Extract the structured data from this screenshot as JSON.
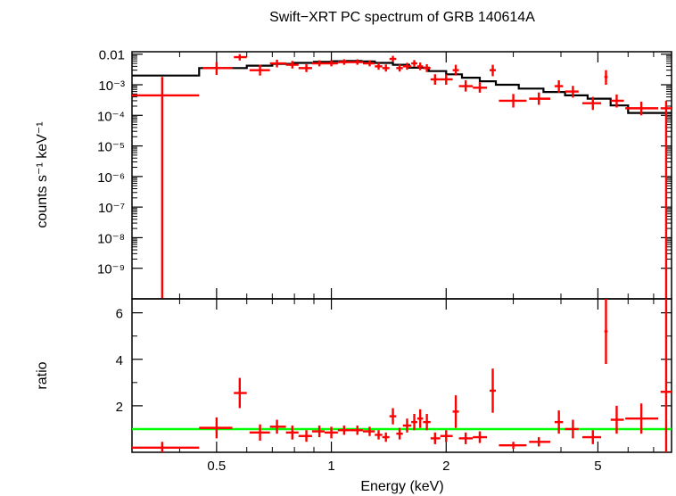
{
  "chart_data": [
    {
      "type": "scatter",
      "title": "Swift−XRT PC spectrum of GRB 140614A",
      "ylabel": "counts s⁻¹ keV⁻¹",
      "x_scale": "log",
      "y_scale": "log",
      "xlim": [
        0.3,
        7.8
      ],
      "ylim": [
        1e-10,
        0.012
      ],
      "y_ticks": [
        {
          "v": 0.01,
          "label": "0.01"
        },
        {
          "v": 0.001,
          "label": "10⁻³"
        },
        {
          "v": 0.0001,
          "label": "10⁻⁴"
        },
        {
          "v": 1e-05,
          "label": "10⁻⁵"
        },
        {
          "v": 1e-06,
          "label": "10⁻⁶"
        },
        {
          "v": 1e-07,
          "label": "10⁻⁷"
        },
        {
          "v": 1e-08,
          "label": "10⁻⁸"
        },
        {
          "v": 1e-09,
          "label": "10⁻⁹"
        }
      ],
      "colors": {
        "data": "#ff0000",
        "model": "#000000"
      },
      "data_points": [
        {
          "x": 0.36,
          "xlo": 0.3,
          "xhi": 0.45,
          "y": 0.00045,
          "ylo": 1e-10,
          "yhi": 0.0018
        },
        {
          "x": 0.5,
          "xlo": 0.46,
          "xhi": 0.55,
          "y": 0.0035,
          "ylo": 0.0021,
          "yhi": 0.0055
        },
        {
          "x": 0.575,
          "xlo": 0.555,
          "xhi": 0.6,
          "y": 0.008,
          "ylo": 0.0062,
          "yhi": 0.01
        },
        {
          "x": 0.65,
          "xlo": 0.61,
          "xhi": 0.69,
          "y": 0.003,
          "ylo": 0.002,
          "yhi": 0.0045
        },
        {
          "x": 0.72,
          "xlo": 0.69,
          "xhi": 0.76,
          "y": 0.005,
          "ylo": 0.0037,
          "yhi": 0.0066
        },
        {
          "x": 0.79,
          "xlo": 0.76,
          "xhi": 0.82,
          "y": 0.0045,
          "ylo": 0.0034,
          "yhi": 0.006
        },
        {
          "x": 0.86,
          "xlo": 0.82,
          "xhi": 0.89,
          "y": 0.0035,
          "ylo": 0.0026,
          "yhi": 0.0047
        },
        {
          "x": 0.93,
          "xlo": 0.89,
          "xhi": 0.96,
          "y": 0.005,
          "ylo": 0.004,
          "yhi": 0.0063
        },
        {
          "x": 1.0,
          "xlo": 0.96,
          "xhi": 1.04,
          "y": 0.005,
          "ylo": 0.004,
          "yhi": 0.0063
        },
        {
          "x": 1.08,
          "xlo": 1.04,
          "xhi": 1.12,
          "y": 0.0055,
          "ylo": 0.0045,
          "yhi": 0.0068
        },
        {
          "x": 1.17,
          "xlo": 1.12,
          "xhi": 1.21,
          "y": 0.0055,
          "ylo": 0.0045,
          "yhi": 0.0068
        },
        {
          "x": 1.26,
          "xlo": 1.21,
          "xhi": 1.3,
          "y": 0.005,
          "ylo": 0.004,
          "yhi": 0.0063
        },
        {
          "x": 1.33,
          "xlo": 1.3,
          "xhi": 1.36,
          "y": 0.004,
          "ylo": 0.0031,
          "yhi": 0.0052
        },
        {
          "x": 1.39,
          "xlo": 1.36,
          "xhi": 1.42,
          "y": 0.0035,
          "ylo": 0.0027,
          "yhi": 0.0046
        },
        {
          "x": 1.45,
          "xlo": 1.42,
          "xhi": 1.48,
          "y": 0.007,
          "ylo": 0.0056,
          "yhi": 0.0088
        },
        {
          "x": 1.51,
          "xlo": 1.48,
          "xhi": 1.54,
          "y": 0.0035,
          "ylo": 0.0027,
          "yhi": 0.0046
        },
        {
          "x": 1.58,
          "xlo": 1.54,
          "xhi": 1.62,
          "y": 0.004,
          "ylo": 0.0031,
          "yhi": 0.0052
        },
        {
          "x": 1.65,
          "xlo": 1.62,
          "xhi": 1.68,
          "y": 0.005,
          "ylo": 0.0039,
          "yhi": 0.0064
        },
        {
          "x": 1.71,
          "xlo": 1.68,
          "xhi": 1.74,
          "y": 0.004,
          "ylo": 0.003,
          "yhi": 0.0053
        },
        {
          "x": 1.78,
          "xlo": 1.74,
          "xhi": 1.82,
          "y": 0.0035,
          "ylo": 0.0026,
          "yhi": 0.0047
        },
        {
          "x": 1.87,
          "xlo": 1.82,
          "xhi": 1.93,
          "y": 0.0015,
          "ylo": 0.001,
          "yhi": 0.0022
        },
        {
          "x": 2.0,
          "xlo": 1.93,
          "xhi": 2.08,
          "y": 0.0015,
          "ylo": 0.001,
          "yhi": 0.0022
        },
        {
          "x": 2.12,
          "xlo": 2.08,
          "xhi": 2.16,
          "y": 0.003,
          "ylo": 0.002,
          "yhi": 0.0045
        },
        {
          "x": 2.25,
          "xlo": 2.16,
          "xhi": 2.35,
          "y": 0.0009,
          "ylo": 0.0006,
          "yhi": 0.0014
        },
        {
          "x": 2.45,
          "xlo": 2.35,
          "xhi": 2.56,
          "y": 0.0008,
          "ylo": 0.00055,
          "yhi": 0.0012
        },
        {
          "x": 2.65,
          "xlo": 2.6,
          "xhi": 2.7,
          "y": 0.003,
          "ylo": 0.0019,
          "yhi": 0.0045
        },
        {
          "x": 3.0,
          "xlo": 2.75,
          "xhi": 3.25,
          "y": 0.0003,
          "ylo": 0.00018,
          "yhi": 0.0005
        },
        {
          "x": 3.5,
          "xlo": 3.3,
          "xhi": 3.75,
          "y": 0.00035,
          "ylo": 0.00022,
          "yhi": 0.00056
        },
        {
          "x": 3.95,
          "xlo": 3.85,
          "xhi": 4.05,
          "y": 0.0009,
          "ylo": 0.00055,
          "yhi": 0.0014
        },
        {
          "x": 4.3,
          "xlo": 4.1,
          "xhi": 4.45,
          "y": 0.0006,
          "ylo": 0.00038,
          "yhi": 0.00092
        },
        {
          "x": 4.85,
          "xlo": 4.55,
          "xhi": 5.1,
          "y": 0.00025,
          "ylo": 0.00015,
          "yhi": 0.0004
        },
        {
          "x": 5.25,
          "xlo": 5.2,
          "xhi": 5.3,
          "y": 0.0018,
          "ylo": 0.001,
          "yhi": 0.003
        },
        {
          "x": 5.6,
          "xlo": 5.4,
          "xhi": 5.85,
          "y": 0.0003,
          "ylo": 0.00018,
          "yhi": 0.00048
        },
        {
          "x": 6.5,
          "xlo": 5.9,
          "xhi": 7.2,
          "y": 0.00017,
          "ylo": 0.0001,
          "yhi": 0.00028
        },
        {
          "x": 7.55,
          "xlo": 7.3,
          "xhi": 7.8,
          "y": 0.00017,
          "ylo": 1e-10,
          "yhi": 0.0003
        }
      ],
      "model_steps": [
        {
          "xlo": 0.3,
          "xhi": 0.45,
          "y": 0.002
        },
        {
          "xlo": 0.45,
          "xhi": 0.6,
          "y": 0.0035
        },
        {
          "xlo": 0.6,
          "xhi": 0.7,
          "y": 0.0042
        },
        {
          "xlo": 0.7,
          "xhi": 0.8,
          "y": 0.0048
        },
        {
          "xlo": 0.8,
          "xhi": 0.9,
          "y": 0.0052
        },
        {
          "xlo": 0.9,
          "xhi": 1.0,
          "y": 0.0056
        },
        {
          "xlo": 1.0,
          "xhi": 1.1,
          "y": 0.0059
        },
        {
          "xlo": 1.1,
          "xhi": 1.2,
          "y": 0.006
        },
        {
          "xlo": 1.2,
          "xhi": 1.3,
          "y": 0.0058
        },
        {
          "xlo": 1.3,
          "xhi": 1.45,
          "y": 0.0052
        },
        {
          "xlo": 1.45,
          "xhi": 1.6,
          "y": 0.0045
        },
        {
          "xlo": 1.6,
          "xhi": 1.8,
          "y": 0.0036
        },
        {
          "xlo": 1.8,
          "xhi": 2.0,
          "y": 0.0028
        },
        {
          "xlo": 2.0,
          "xhi": 2.2,
          "y": 0.0022
        },
        {
          "xlo": 2.2,
          "xhi": 2.45,
          "y": 0.0017
        },
        {
          "xlo": 2.45,
          "xhi": 2.7,
          "y": 0.0013
        },
        {
          "xlo": 2.7,
          "xhi": 3.1,
          "y": 0.001
        },
        {
          "xlo": 3.1,
          "xhi": 3.6,
          "y": 0.00075
        },
        {
          "xlo": 3.6,
          "xhi": 4.1,
          "y": 0.00058
        },
        {
          "xlo": 4.1,
          "xhi": 4.7,
          "y": 0.00045
        },
        {
          "xlo": 4.7,
          "xhi": 5.4,
          "y": 0.00035
        },
        {
          "xlo": 5.4,
          "xhi": 6.0,
          "y": 0.00021
        },
        {
          "xlo": 6.0,
          "xhi": 7.8,
          "y": 0.00012
        }
      ]
    },
    {
      "type": "scatter",
      "xlabel": "Energy (keV)",
      "ylabel": "ratio",
      "x_scale": "log",
      "xlim": [
        0.3,
        7.8
      ],
      "ylim": [
        0,
        6.6
      ],
      "x_ticks": [
        {
          "v": 0.5,
          "label": "0.5"
        },
        {
          "v": 1,
          "label": "1"
        },
        {
          "v": 2,
          "label": "2"
        },
        {
          "v": 5,
          "label": "5"
        }
      ],
      "y_ticks": [
        {
          "v": 2,
          "label": "2"
        },
        {
          "v": 4,
          "label": "4"
        },
        {
          "v": 6,
          "label": "6"
        }
      ],
      "reference_line": {
        "y": 1.0,
        "color": "#00ff00"
      },
      "colors": {
        "data": "#ff0000"
      },
      "data_points": [
        {
          "x": 0.36,
          "xlo": 0.3,
          "xhi": 0.45,
          "y": 0.2,
          "ylo": 0.0,
          "yhi": 0.45
        },
        {
          "x": 0.5,
          "xlo": 0.45,
          "xhi": 0.55,
          "y": 1.05,
          "ylo": 0.6,
          "yhi": 1.5
        },
        {
          "x": 0.575,
          "xlo": 0.555,
          "xhi": 0.6,
          "y": 2.55,
          "ylo": 1.9,
          "yhi": 3.2
        },
        {
          "x": 0.65,
          "xlo": 0.61,
          "xhi": 0.69,
          "y": 0.85,
          "ylo": 0.5,
          "yhi": 1.2
        },
        {
          "x": 0.72,
          "xlo": 0.69,
          "xhi": 0.76,
          "y": 1.1,
          "ylo": 0.8,
          "yhi": 1.4
        },
        {
          "x": 0.79,
          "xlo": 0.76,
          "xhi": 0.82,
          "y": 0.85,
          "ylo": 0.55,
          "yhi": 1.15
        },
        {
          "x": 0.86,
          "xlo": 0.82,
          "xhi": 0.89,
          "y": 0.7,
          "ylo": 0.45,
          "yhi": 0.95
        },
        {
          "x": 0.93,
          "xlo": 0.89,
          "xhi": 0.96,
          "y": 0.9,
          "ylo": 0.65,
          "yhi": 1.15
        },
        {
          "x": 1.0,
          "xlo": 0.96,
          "xhi": 1.04,
          "y": 0.85,
          "ylo": 0.6,
          "yhi": 1.1
        },
        {
          "x": 1.08,
          "xlo": 1.04,
          "xhi": 1.12,
          "y": 0.95,
          "ylo": 0.75,
          "yhi": 1.15
        },
        {
          "x": 1.17,
          "xlo": 1.12,
          "xhi": 1.21,
          "y": 0.95,
          "ylo": 0.75,
          "yhi": 1.15
        },
        {
          "x": 1.26,
          "xlo": 1.21,
          "xhi": 1.3,
          "y": 0.9,
          "ylo": 0.7,
          "yhi": 1.1
        },
        {
          "x": 1.33,
          "xlo": 1.3,
          "xhi": 1.36,
          "y": 0.75,
          "ylo": 0.55,
          "yhi": 0.95
        },
        {
          "x": 1.39,
          "xlo": 1.36,
          "xhi": 1.42,
          "y": 0.65,
          "ylo": 0.45,
          "yhi": 0.85
        },
        {
          "x": 1.45,
          "xlo": 1.42,
          "xhi": 1.48,
          "y": 1.55,
          "ylo": 1.2,
          "yhi": 1.9
        },
        {
          "x": 1.51,
          "xlo": 1.48,
          "xhi": 1.54,
          "y": 0.8,
          "ylo": 0.55,
          "yhi": 1.05
        },
        {
          "x": 1.58,
          "xlo": 1.54,
          "xhi": 1.62,
          "y": 1.15,
          "ylo": 0.85,
          "yhi": 1.45
        },
        {
          "x": 1.65,
          "xlo": 1.62,
          "xhi": 1.68,
          "y": 1.3,
          "ylo": 0.95,
          "yhi": 1.65
        },
        {
          "x": 1.71,
          "xlo": 1.68,
          "xhi": 1.74,
          "y": 1.45,
          "ylo": 1.05,
          "yhi": 1.85
        },
        {
          "x": 1.78,
          "xlo": 1.74,
          "xhi": 1.82,
          "y": 1.3,
          "ylo": 0.95,
          "yhi": 1.65
        },
        {
          "x": 1.87,
          "xlo": 1.82,
          "xhi": 1.93,
          "y": 0.6,
          "ylo": 0.35,
          "yhi": 0.85
        },
        {
          "x": 2.0,
          "xlo": 1.93,
          "xhi": 2.08,
          "y": 0.7,
          "ylo": 0.45,
          "yhi": 0.95
        },
        {
          "x": 2.12,
          "xlo": 2.08,
          "xhi": 2.16,
          "y": 1.75,
          "ylo": 1.05,
          "yhi": 2.45
        },
        {
          "x": 2.25,
          "xlo": 2.16,
          "xhi": 2.35,
          "y": 0.6,
          "ylo": 0.35,
          "yhi": 0.85
        },
        {
          "x": 2.45,
          "xlo": 2.35,
          "xhi": 2.56,
          "y": 0.65,
          "ylo": 0.4,
          "yhi": 0.9
        },
        {
          "x": 2.65,
          "xlo": 2.6,
          "xhi": 2.7,
          "y": 2.65,
          "ylo": 1.7,
          "yhi": 3.6
        },
        {
          "x": 3.0,
          "xlo": 2.75,
          "xhi": 3.25,
          "y": 0.3,
          "ylo": 0.15,
          "yhi": 0.45
        },
        {
          "x": 3.5,
          "xlo": 3.3,
          "xhi": 3.75,
          "y": 0.45,
          "ylo": 0.25,
          "yhi": 0.65
        },
        {
          "x": 3.95,
          "xlo": 3.85,
          "xhi": 4.05,
          "y": 1.3,
          "ylo": 0.8,
          "yhi": 1.8
        },
        {
          "x": 4.3,
          "xlo": 4.1,
          "xhi": 4.45,
          "y": 1.0,
          "ylo": 0.6,
          "yhi": 1.4
        },
        {
          "x": 4.85,
          "xlo": 4.55,
          "xhi": 5.1,
          "y": 0.65,
          "ylo": 0.35,
          "yhi": 0.95
        },
        {
          "x": 5.25,
          "xlo": 5.2,
          "xhi": 5.3,
          "y": 5.2,
          "ylo": 3.8,
          "yhi": 6.6
        },
        {
          "x": 5.6,
          "xlo": 5.4,
          "xhi": 5.85,
          "y": 1.4,
          "ylo": 0.8,
          "yhi": 2.0
        },
        {
          "x": 6.5,
          "xlo": 5.9,
          "xhi": 7.2,
          "y": 1.45,
          "ylo": 0.8,
          "yhi": 2.1
        },
        {
          "x": 7.55,
          "xlo": 7.3,
          "xhi": 7.8,
          "y": 2.6,
          "ylo": 0.0,
          "yhi": 6.6
        }
      ]
    }
  ]
}
